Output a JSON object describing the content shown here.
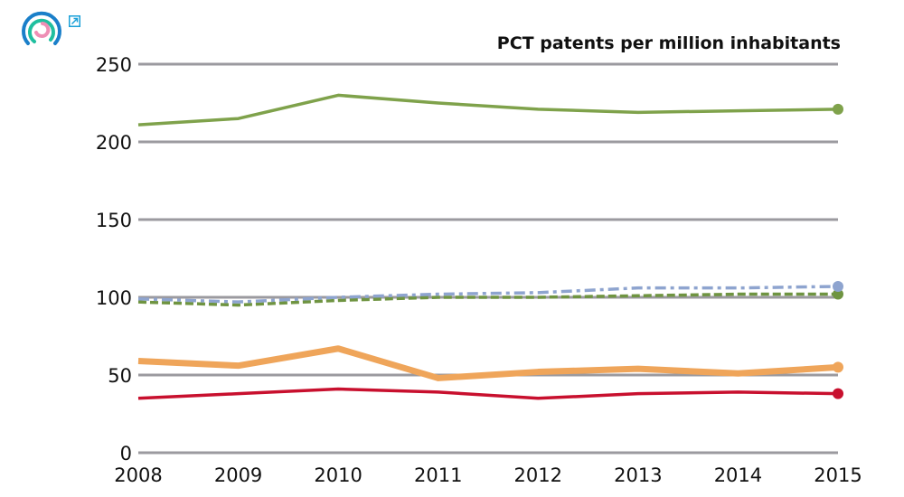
{
  "header": {
    "logo_icon": "concentric-rings-logo-icon",
    "expand_icon": "external-link-arrow-icon"
  },
  "chart_data": {
    "type": "line",
    "title": "PCT patents per million inhabitants",
    "xlabel": "",
    "ylabel": "",
    "x": [
      "2008",
      "2009",
      "2010",
      "2011",
      "2012",
      "2013",
      "2014",
      "2015"
    ],
    "ylim": [
      0,
      250
    ],
    "yticks": [
      "0",
      "50",
      "100",
      "150",
      "200",
      "250"
    ],
    "grid": true,
    "legend": "none",
    "series": [
      {
        "name": "series-green-solid",
        "color": "#7fa24b",
        "style": "solid",
        "weight": "medium",
        "values": [
          211,
          215,
          230,
          225,
          221,
          219,
          220,
          221
        ]
      },
      {
        "name": "series-blue-dashdot",
        "color": "#8ea4cf",
        "style": "dashdot",
        "weight": "medium",
        "values": [
          99,
          97,
          100,
          102,
          103,
          106,
          106,
          107
        ]
      },
      {
        "name": "series-green-dashed",
        "color": "#6f9441",
        "style": "dashed",
        "weight": "medium",
        "values": [
          97,
          95,
          98,
          100,
          100,
          101,
          102,
          102
        ]
      },
      {
        "name": "series-orange-thick",
        "color": "#efa55a",
        "style": "solid",
        "weight": "thick",
        "values": [
          59,
          56,
          67,
          48,
          52,
          54,
          51,
          55
        ]
      },
      {
        "name": "series-red-solid",
        "color": "#c8102e",
        "style": "solid",
        "weight": "medium",
        "values": [
          35,
          38,
          41,
          39,
          35,
          38,
          39,
          38
        ]
      }
    ]
  }
}
